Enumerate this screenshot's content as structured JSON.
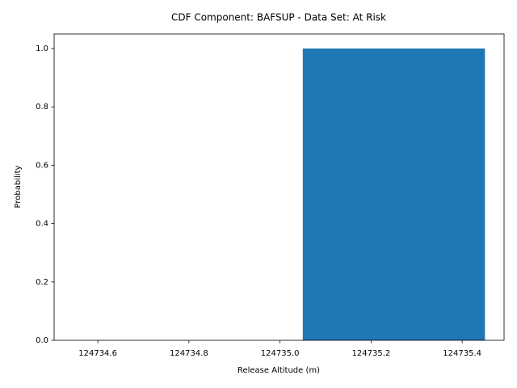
{
  "chart_data": {
    "type": "histogram",
    "title": "CDF Component: BAFSUP - Data Set: At Risk",
    "x_label": "Release Altitude (m)",
    "y_label": "Probability",
    "bins": [
      124735.05,
      124735.45
    ],
    "values": [
      1.0
    ],
    "color": "#1f77b4",
    "xlim": [
      124734.504,
      124735.492
    ],
    "ylim": [
      0,
      1.05
    ],
    "xticks": [
      124734.6,
      124734.8,
      {
        "value": 124735,
        "label": "124735.0"
      },
      124735.2,
      124735.4
    ],
    "yticks": [
      {
        "value": 0,
        "label": "0.0"
      },
      0.2,
      0.4,
      0.6,
      0.8,
      {
        "value": 1,
        "label": "1.0"
      }
    ]
  }
}
